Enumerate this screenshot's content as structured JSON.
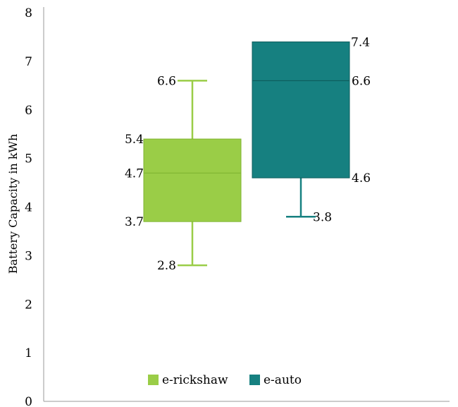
{
  "chart_data": {
    "type": "box",
    "title": "",
    "xlabel": "",
    "ylabel": "Battery Capacity in kWh",
    "ylim": [
      0,
      8
    ],
    "yticks": [
      "0",
      "1",
      "2",
      "3",
      "4",
      "5",
      "6",
      "7",
      "8"
    ],
    "grid": false,
    "legend_position": "bottom-center",
    "series": [
      {
        "name": "e-rickshaw",
        "color": "#9ACD47",
        "edge_color": "#7FB531",
        "min": 2.8,
        "q1": 3.7,
        "median": 4.7,
        "q3": 5.4,
        "max": 6.6,
        "labels": {
          "min": "2.8",
          "q1": "3.7",
          "median": "4.7",
          "q3": "5.4",
          "max": "6.6"
        }
      },
      {
        "name": "e-auto",
        "color": "#168080",
        "edge_color": "#0E5C5C",
        "min": 3.8,
        "q1": 4.6,
        "median": 6.6,
        "q3": 7.4,
        "max": 7.4,
        "labels": {
          "min": "3.8",
          "q1": "4.6",
          "median": "6.6",
          "q3": "7.4"
        }
      }
    ]
  }
}
